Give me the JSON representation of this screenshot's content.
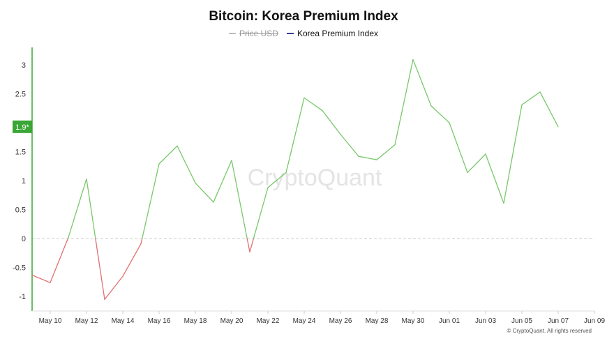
{
  "title": "Bitcoin: Korea Premium Index",
  "legend": [
    {
      "label": "Price USD",
      "state": "hidden",
      "color": "#bbbbbb"
    },
    {
      "label": "Korea Premium Index",
      "state": "active",
      "color": "#3b3b9a"
    }
  ],
  "watermark": "CryptoQuant",
  "copyright": "© CryptoQuant. All rights reserved",
  "current_marker": "1.9*",
  "colors": {
    "positive": "#78c86a",
    "negative": "#e07070",
    "axis": "#3aa635",
    "marker_bg": "#3aa635",
    "zero_line": "#cccccc"
  },
  "chart_data": {
    "type": "line",
    "title": "Bitcoin: Korea Premium Index",
    "xlabel": "",
    "ylabel": "",
    "ylim": [
      -1.25,
      3.3
    ],
    "yticks": [
      3,
      2.5,
      2,
      1.5,
      1,
      0.5,
      0,
      -0.5,
      -1
    ],
    "ytick_labels": [
      "3",
      "2.5",
      "",
      "1.5",
      "1",
      "0.5",
      "0",
      "-0.5",
      "-1"
    ],
    "xlim": [
      "2023-05-09",
      "2023-06-09"
    ],
    "xticks": [
      "2023-05-10",
      "2023-05-12",
      "2023-05-14",
      "2023-05-16",
      "2023-05-18",
      "2023-05-20",
      "2023-05-22",
      "2023-05-24",
      "2023-05-26",
      "2023-05-28",
      "2023-05-30",
      "2023-06-01",
      "2023-06-03",
      "2023-06-05",
      "2023-06-07",
      "2023-06-09"
    ],
    "xtick_labels": [
      "May 10",
      "May 12",
      "May 14",
      "May 16",
      "May 18",
      "May 20",
      "May 22",
      "May 24",
      "May 26",
      "May 28",
      "May 30",
      "Jun 01",
      "Jun 03",
      "Jun 05",
      "Jun 07",
      "Jun 09"
    ],
    "grid": false,
    "legend_position": "top-center",
    "series": [
      {
        "name": "Korea Premium Index",
        "x": [
          "2023-05-09",
          "2023-05-10",
          "2023-05-11",
          "2023-05-12",
          "2023-05-13",
          "2023-05-14",
          "2023-05-15",
          "2023-05-16",
          "2023-05-17",
          "2023-05-18",
          "2023-05-19",
          "2023-05-20",
          "2023-05-21",
          "2023-05-22",
          "2023-05-23",
          "2023-05-24",
          "2023-05-25",
          "2023-05-26",
          "2023-05-27",
          "2023-05-28",
          "2023-05-29",
          "2023-05-30",
          "2023-05-31",
          "2023-06-01",
          "2023-06-02",
          "2023-06-03",
          "2023-06-04",
          "2023-06-05",
          "2023-06-06",
          "2023-06-07"
        ],
        "values": [
          -0.63,
          -0.76,
          0.02,
          1.03,
          -1.05,
          -0.65,
          -0.09,
          1.29,
          1.6,
          0.96,
          0.63,
          1.35,
          -0.23,
          0.88,
          1.14,
          2.43,
          2.21,
          1.8,
          1.42,
          1.36,
          1.62,
          3.09,
          2.29,
          2.0,
          1.14,
          1.46,
          0.61,
          2.31,
          2.53,
          1.93
        ]
      }
    ]
  }
}
